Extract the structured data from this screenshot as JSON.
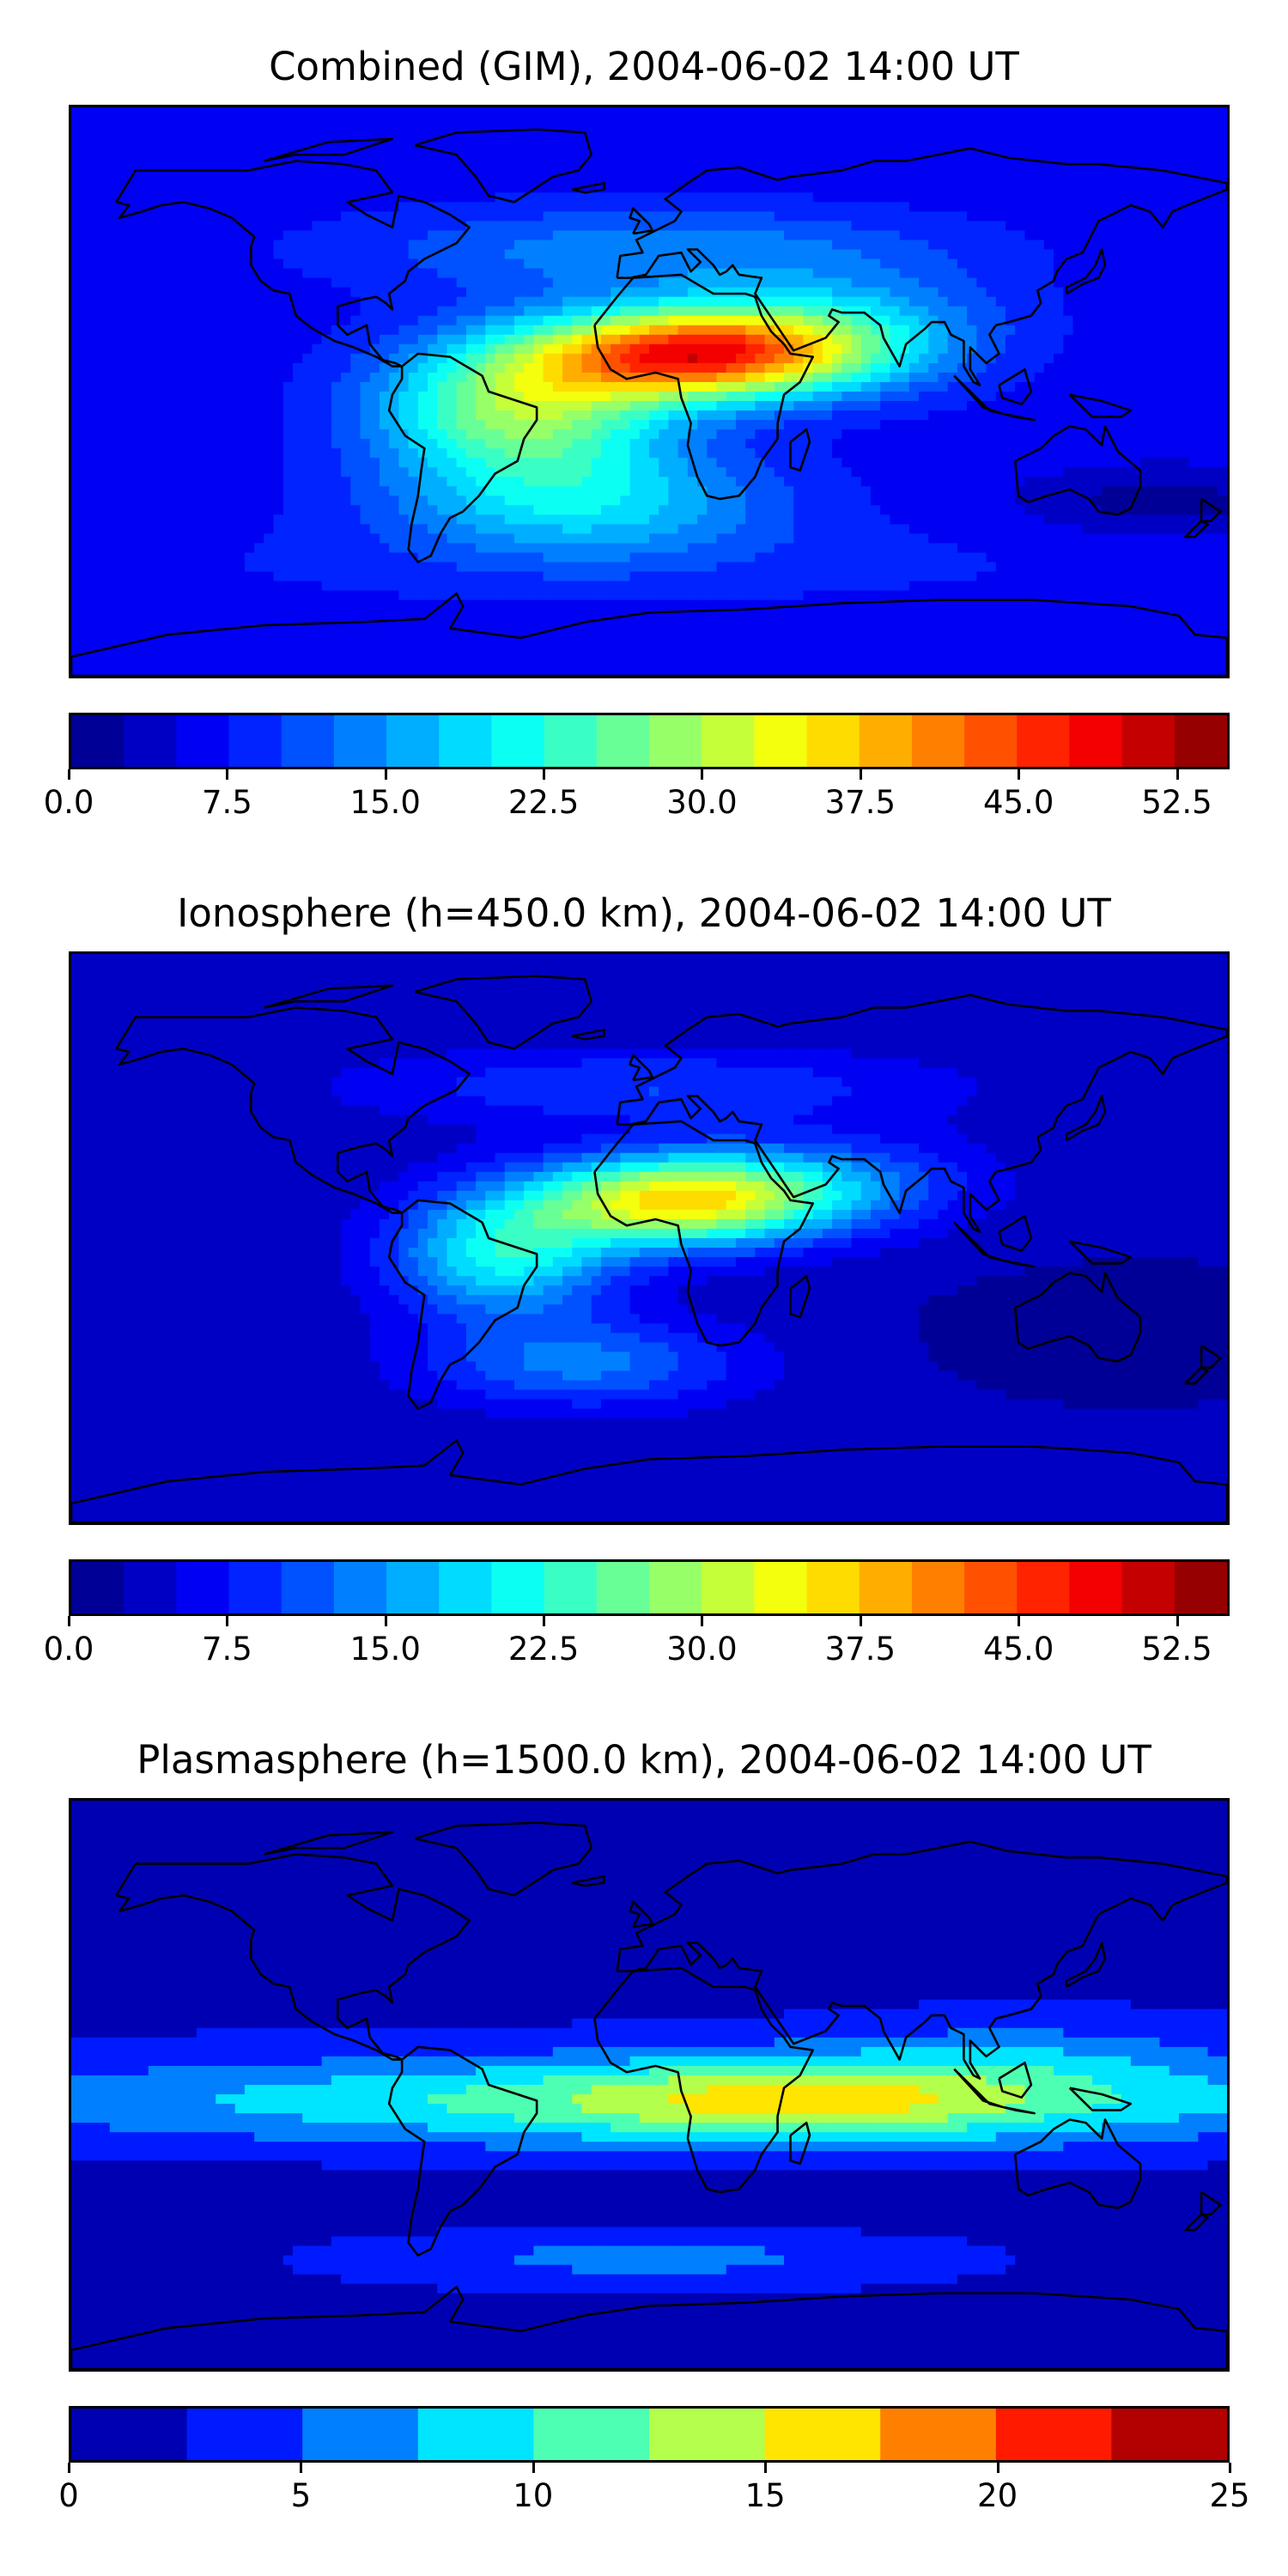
{
  "panels": [
    {
      "title": "Combined (GIM), 2004-06-02 14:00 UT",
      "colorbar": {
        "min": 0,
        "max": 55,
        "levels": 22,
        "tick_values": [
          0.0,
          7.5,
          15.0,
          22.5,
          30.0,
          37.5,
          45.0,
          52.5
        ],
        "tick_labels": [
          "0.0",
          "7.5",
          "15.0",
          "22.5",
          "30.0",
          "37.5",
          "45.0",
          "52.5"
        ]
      },
      "peak": {
        "lon": 10,
        "lat": 10,
        "value": 47
      }
    },
    {
      "title": "Ionosphere  (h=450.0 km), 2004-06-02 14:00 UT",
      "colorbar": {
        "min": 0,
        "max": 55,
        "levels": 22,
        "tick_values": [
          0.0,
          7.5,
          15.0,
          22.5,
          30.0,
          37.5,
          45.0,
          52.5
        ],
        "tick_labels": [
          "0.0",
          "7.5",
          "15.0",
          "22.5",
          "30.0",
          "37.5",
          "45.0",
          "52.5"
        ]
      },
      "peak": {
        "lon": 10,
        "lat": 10,
        "value": 38
      }
    },
    {
      "title": "Plasmasphere (h=1500.0 km), 2004-06-02 14:00 UT",
      "colorbar": {
        "min": 0,
        "max": 25,
        "levels": 10,
        "tick_values": [
          0,
          5,
          10,
          15,
          20,
          25
        ],
        "tick_labels": [
          "0",
          "5",
          "10",
          "15",
          "20",
          "25"
        ]
      },
      "peak": {
        "lon": 40,
        "lat": -5,
        "value": 16
      }
    }
  ],
  "colors": {
    "jet": [
      "#00007f",
      "#0000e3",
      "#0050ff",
      "#00c0ff",
      "#2dffca",
      "#a4ff53",
      "#ffe500",
      "#ff7a00",
      "#ef0a00",
      "#7f0000"
    ]
  },
  "coastline_color": "#000000"
}
